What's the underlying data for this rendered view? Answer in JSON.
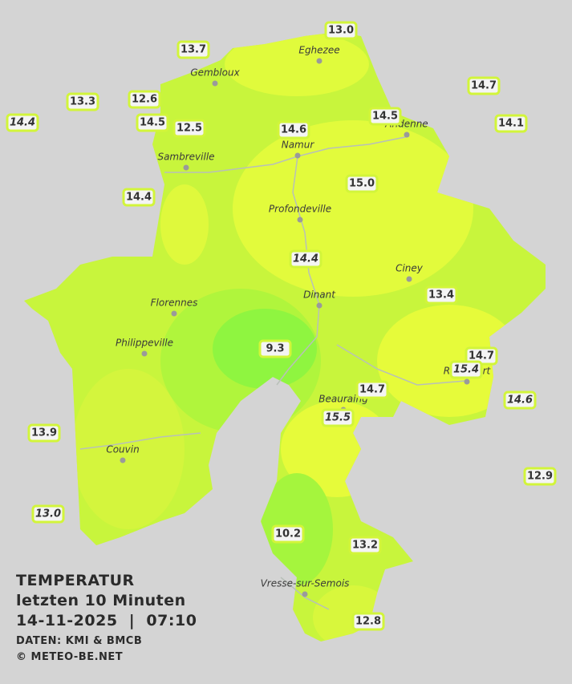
{
  "title": {
    "heading": "TEMPERATUR",
    "subtitle": "letzten 10 Minuten",
    "datetime": "14-11-2025  |  07:10",
    "source": "DATEN: KMI & BMCB",
    "copyright": "© METEO-BE.NET"
  },
  "cities": [
    "Eghezee",
    "Gembloux",
    "Andenne",
    "Namur",
    "Sambreville",
    "Profondeville",
    "Ciney",
    "Dinant",
    "Florennes",
    "Philippeville",
    "Beauraing",
    "Rochefort",
    "Couvin",
    "Vresse-sur-Semois"
  ],
  "stations": [
    {
      "value": 13.0,
      "label": "13.0"
    },
    {
      "value": 13.7,
      "label": "13.7"
    },
    {
      "value": 14.7,
      "label": "14.7"
    },
    {
      "value": 13.3,
      "label": "13.3"
    },
    {
      "value": 12.6,
      "label": "12.6"
    },
    {
      "value": 14.4,
      "label": "14.4",
      "style": "italic"
    },
    {
      "value": 14.5,
      "label": "14.5"
    },
    {
      "value": 12.5,
      "label": "12.5"
    },
    {
      "value": 14.6,
      "label": "14.6"
    },
    {
      "value": 14.5,
      "label": "14.5"
    },
    {
      "value": 14.1,
      "label": "14.1"
    },
    {
      "value": 15.0,
      "label": "15.0"
    },
    {
      "value": 14.4,
      "label": "14.4"
    },
    {
      "value": 14.4,
      "label": "14.4",
      "style": "italic"
    },
    {
      "value": 13.4,
      "label": "13.4"
    },
    {
      "value": 9.3,
      "label": "9.3"
    },
    {
      "value": 14.7,
      "label": "14.7"
    },
    {
      "value": 15.4,
      "label": "15.4",
      "style": "italic"
    },
    {
      "value": 14.7,
      "label": "14.7"
    },
    {
      "value": 14.6,
      "label": "14.6",
      "style": "italic"
    },
    {
      "value": 15.5,
      "label": "15.5",
      "style": "italic"
    },
    {
      "value": 13.9,
      "label": "13.9"
    },
    {
      "value": 12.9,
      "label": "12.9"
    },
    {
      "value": 13.0,
      "label": "13.0",
      "style": "italic"
    },
    {
      "value": 10.2,
      "label": "10.2"
    },
    {
      "value": 13.2,
      "label": "13.2"
    },
    {
      "value": 12.8,
      "label": "12.8"
    }
  ]
}
